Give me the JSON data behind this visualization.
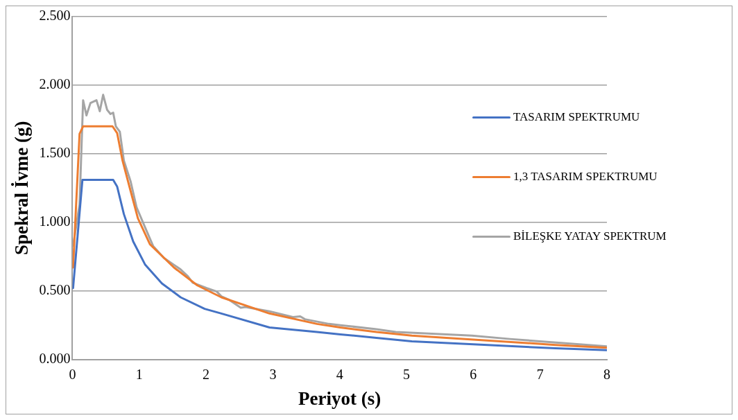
{
  "chart_data": {
    "type": "line",
    "xlabel": "Periyot (s)",
    "ylabel": "Spekral İvme (g)",
    "xlim": [
      0,
      8
    ],
    "xticks": [
      0,
      1,
      2,
      3,
      4,
      5,
      6,
      7,
      8
    ],
    "ylim": [
      0,
      2.5
    ],
    "yticks": [
      {
        "value": 0,
        "label": "0.000"
      },
      {
        "value": 0.5,
        "label": "0.500"
      },
      {
        "value": 1,
        "label": "1.000"
      },
      {
        "value": 1.5,
        "label": "1.500"
      },
      {
        "value": 2,
        "label": "2.000"
      },
      {
        "value": 2.5,
        "label": "2.500"
      }
    ],
    "grid": "y",
    "legend": "right",
    "marker": "none",
    "line_style": "solid",
    "series": [
      {
        "name": "TASARIM SPEKTRUMU",
        "color": "#4472c4",
        "x": [
          0.01,
          0.15,
          0.61,
          0.67,
          0.77,
          0.91,
          1.09,
          1.34,
          1.62,
          1.98,
          2.23,
          2.95,
          3.66,
          4.01,
          4.55,
          5.08,
          6.16,
          7.23,
          8
        ],
        "values": [
          0.52,
          1.31,
          1.31,
          1.26,
          1.06,
          0.86,
          0.69,
          0.554,
          0.453,
          0.369,
          0.335,
          0.233,
          0.2,
          0.183,
          0.157,
          0.132,
          0.107,
          0.081,
          0.067
        ]
      },
      {
        "name": "1,3 TASARIM SPEKTRUMU",
        "color": "#ed7d31",
        "x": [
          0.01,
          0.107,
          0.16,
          0.6,
          0.67,
          0.75,
          0.87,
          0.98,
          1.16,
          1.52,
          1.87,
          2.23,
          2.95,
          3.66,
          4.01,
          4.55,
          5.08,
          6.16,
          7.23,
          8
        ],
        "values": [
          0.67,
          1.645,
          1.7,
          1.7,
          1.65,
          1.45,
          1.23,
          1.03,
          0.84,
          0.67,
          0.54,
          0.453,
          0.335,
          0.259,
          0.233,
          0.2,
          0.174,
          0.14,
          0.106,
          0.085
        ]
      },
      {
        "name": "BİLEŞKE YATAY SPEKTRUM",
        "color": "#a5a5a5",
        "x": [
          0.01,
          0.107,
          0.16,
          0.21,
          0.27,
          0.36,
          0.41,
          0.46,
          0.52,
          0.57,
          0.61,
          0.65,
          0.71,
          0.77,
          0.87,
          0.96,
          1.09,
          1.21,
          1.37,
          1.62,
          1.73,
          1.8,
          2.01,
          2.16,
          2.23,
          2.34,
          2.52,
          2.59,
          2.95,
          3.3,
          3.41,
          3.48,
          3.84,
          4.01,
          4.55,
          4.84,
          5.98,
          6.55,
          8
        ],
        "values": [
          0.83,
          1.13,
          1.89,
          1.78,
          1.87,
          1.89,
          1.81,
          1.93,
          1.82,
          1.79,
          1.8,
          1.7,
          1.66,
          1.45,
          1.3,
          1.11,
          0.96,
          0.825,
          0.74,
          0.656,
          0.605,
          0.56,
          0.52,
          0.495,
          0.46,
          0.436,
          0.377,
          0.382,
          0.351,
          0.309,
          0.314,
          0.293,
          0.259,
          0.25,
          0.22,
          0.2,
          0.174,
          0.149,
          0.095
        ]
      }
    ]
  }
}
